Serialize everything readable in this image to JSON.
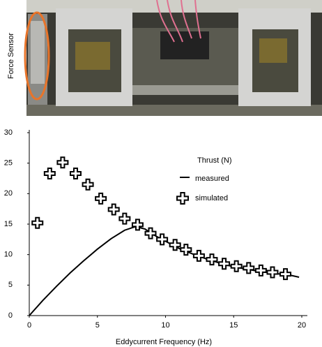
{
  "photo": {
    "label": "Force Sensor"
  },
  "chart_data": {
    "type": "line",
    "x_label": "Eddycurrent Frequency (Hz)",
    "legend_title": "Thrust (N)",
    "xlim": [
      0,
      20
    ],
    "xticks": [
      0,
      5,
      10,
      15,
      20
    ],
    "ylim": [
      0,
      30
    ],
    "yticks": [
      0,
      5,
      10,
      15,
      20,
      25,
      30
    ],
    "series": [
      {
        "name": "measured",
        "color": "#000000",
        "marker": "line",
        "x": [
          0,
          1,
          2,
          3,
          4,
          5,
          6,
          7,
          7.8,
          8.5,
          9,
          10,
          11,
          12,
          13,
          14,
          15,
          16,
          17,
          18,
          19,
          19.8
        ],
        "values": [
          0,
          2.5,
          4.8,
          7,
          9,
          10.9,
          12.6,
          14,
          14.6,
          14.2,
          13.4,
          12.2,
          11,
          10.1,
          9.3,
          8.6,
          8.0,
          7.6,
          7.2,
          6.9,
          6.7,
          6.3
        ]
      },
      {
        "name": "simulated",
        "color": "#000000",
        "marker": "cross",
        "x": [
          0.6,
          1.5,
          2.45,
          3.4,
          4.3,
          5.25,
          6.2,
          7.0,
          7.95,
          8.9,
          9.75,
          10.7,
          11.5,
          12.45,
          13.4,
          14.3,
          15.2,
          16.1,
          17.0,
          17.85,
          18.8
        ],
        "values": [
          15.2,
          23.3,
          25.1,
          23.3,
          21.5,
          19.2,
          17.4,
          15.9,
          14.9,
          13.5,
          12.5,
          11.6,
          10.8,
          9.8,
          9.2,
          8.5,
          8.1,
          7.8,
          7.4,
          7.1,
          6.8
        ]
      }
    ]
  }
}
